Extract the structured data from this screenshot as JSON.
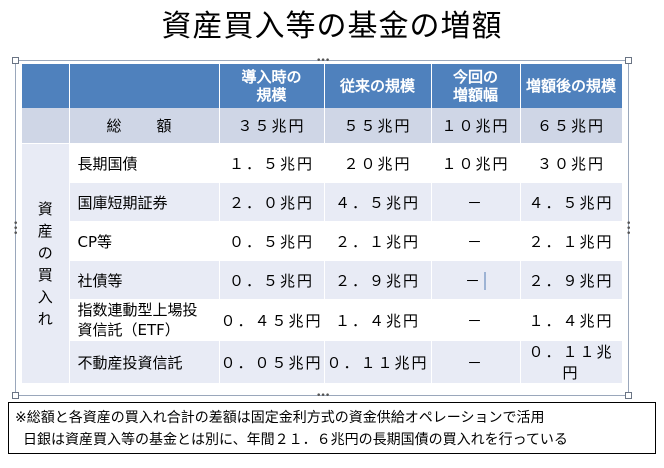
{
  "title": "資産買入等の基金の増額",
  "table": {
    "headers": [
      "",
      "",
      "導入時の\n規模",
      "従来の規模",
      "今回の\n増額幅",
      "増額後の規模"
    ],
    "header_lines": {
      "intro": [
        "導入時の",
        "規模"
      ],
      "prev": "従来の規模",
      "increase": [
        "今回の",
        "増額幅"
      ],
      "after": "増額後の規模"
    },
    "total": {
      "label": "総　額",
      "values": [
        "３５兆円",
        "５５兆円",
        "１０兆円",
        "６５兆円"
      ]
    },
    "side_label": [
      "資",
      "産",
      "の",
      "買",
      "入",
      "れ"
    ],
    "rows": [
      {
        "label": "長期国債",
        "values": [
          "１．５兆円",
          "２０兆円",
          "１０兆円",
          "３０兆円"
        ]
      },
      {
        "label": "国庫短期証券",
        "values": [
          "２．０兆円",
          "４．５兆円",
          "－",
          "４．５兆円"
        ]
      },
      {
        "label": "CP等",
        "values": [
          "０．５兆円",
          "２．１兆円",
          "－",
          "２．１兆円"
        ]
      },
      {
        "label": "社債等",
        "values": [
          "０．５兆円",
          "２．９兆円",
          "－",
          "２．９兆円"
        ]
      },
      {
        "label_lines": [
          "指数連動型上場投",
          "資信託（ETF）"
        ],
        "values": [
          "０．４５兆円",
          "１．４兆円",
          "－",
          "１．４兆円"
        ]
      },
      {
        "label": "不動産投資信託",
        "values": [
          "０．０５兆円",
          "０．１１兆円",
          "－",
          "０．１１兆円"
        ]
      }
    ]
  },
  "notes": [
    "※総額と各資産の買入れ合計の差額は固定金利方式の資金供給オペレーションで活用",
    "日銀は資産買入等の基金とは別に、年間２１．６兆円の長期国債の買入れを行っている"
  ],
  "colors": {
    "header_bg": "#4f81bd",
    "total_bg": "#cfd6e6",
    "band_bg": "#e8ebf5"
  }
}
